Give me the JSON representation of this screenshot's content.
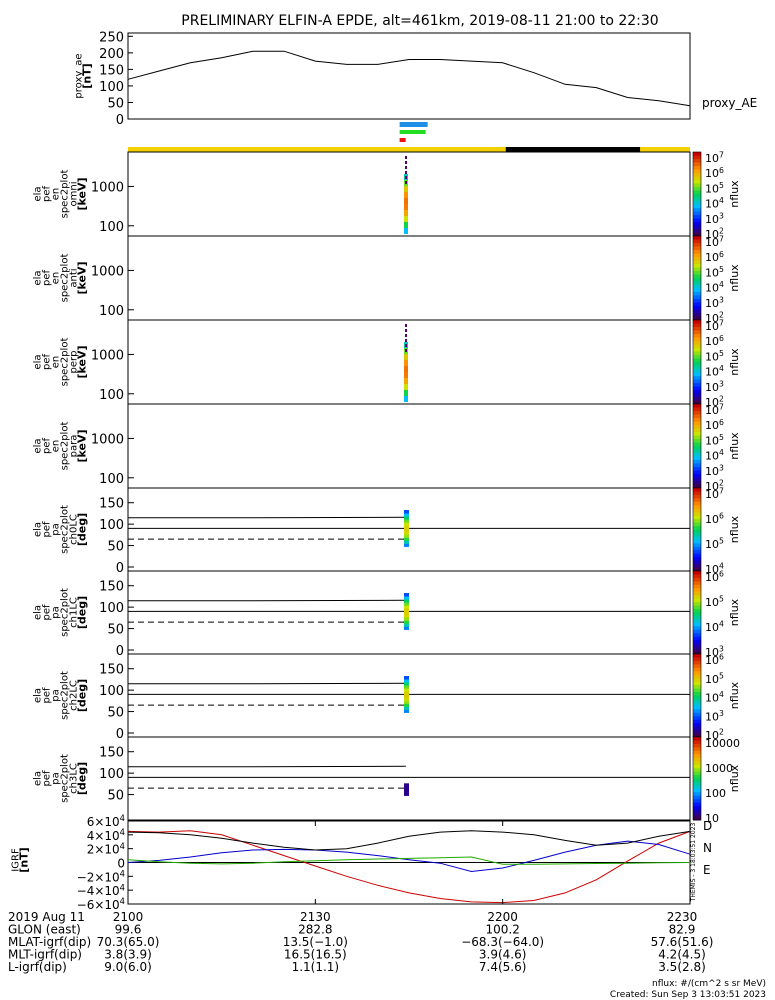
{
  "title": "PRELIMINARY ELFIN-A EPDE, alt=461km, 2019-08-11 21:00 to 22:30",
  "colors": {
    "bar_yellow": "#f5d000",
    "bar_black": "#000000",
    "ind_blue": "#1e8fe6",
    "ind_green": "#22dd22",
    "ind_red": "#ee1111",
    "igrf_x": "#cc0000",
    "igrf_y": "#0000cc",
    "igrf_z": "#22aa00",
    "igrf_total": "#000000"
  },
  "proxy_ae": {
    "ylabel": [
      "proxy_ae",
      "[nT]"
    ],
    "yticks": [
      "250",
      "200",
      "150",
      "100",
      "50",
      "0"
    ],
    "legend": "proxy_AE"
  },
  "spec_panels": [
    {
      "label": [
        "ela",
        "pef",
        "en",
        "spec2plot",
        "omni",
        "[keV]"
      ],
      "yticks": [
        "1000",
        "100"
      ],
      "cbar": [
        "10^7",
        "10^6",
        "10^5",
        "10^4",
        "10^3",
        "10^2"
      ],
      "cbar_label": "nflux"
    },
    {
      "label": [
        "ela",
        "pef",
        "en",
        "spec2plot",
        "anti",
        "[keV]"
      ],
      "yticks": [
        "1000",
        "100"
      ],
      "cbar": [
        "10^7",
        "10^6",
        "10^5",
        "10^4",
        "10^3",
        "10^2"
      ],
      "cbar_label": "nflux"
    },
    {
      "label": [
        "ela",
        "pef",
        "en",
        "spec2plot",
        "perp",
        "[keV]"
      ],
      "yticks": [
        "1000",
        "100"
      ],
      "cbar": [
        "10^7",
        "10^6",
        "10^5",
        "10^4",
        "10^3",
        "10^2"
      ],
      "cbar_label": "nflux"
    },
    {
      "label": [
        "ela",
        "pef",
        "en",
        "spec2plot",
        "para",
        "[keV]"
      ],
      "yticks": [
        "1000",
        "100"
      ],
      "cbar": [
        "10^7",
        "10^6",
        "10^5",
        "10^4",
        "10^3",
        "10^2"
      ],
      "cbar_label": "nflux"
    }
  ],
  "pa_panels": [
    {
      "label": [
        "ela",
        "pef",
        "pa",
        "spec2plot",
        "ch0LC",
        "[deg]"
      ],
      "yticks": [
        "150",
        "100",
        "50",
        "0"
      ],
      "cbar": [
        "10^7",
        "10^6",
        "10^5",
        "10^4"
      ],
      "cbar_label": "nflux"
    },
    {
      "label": [
        "ela",
        "pef",
        "pa",
        "spec2plot",
        "ch1LC",
        "[deg]"
      ],
      "yticks": [
        "150",
        "100",
        "50",
        "0"
      ],
      "cbar": [
        "10^6",
        "10^5",
        "10^4",
        "10^3"
      ],
      "cbar_label": "nflux"
    },
    {
      "label": [
        "ela",
        "pef",
        "pa",
        "spec2plot",
        "ch2LC",
        "[deg]"
      ],
      "yticks": [
        "150",
        "100",
        "50",
        "0"
      ],
      "cbar": [
        "10^6",
        "10^5",
        "10^4",
        "10^3",
        "10^2"
      ],
      "cbar_label": "nflux"
    },
    {
      "label": [
        "ela",
        "pef",
        "pa",
        "spec2plot",
        "ch3LC",
        "[deg]"
      ],
      "yticks": [
        "150",
        "100",
        "50"
      ],
      "cbar": [
        "10000",
        "1000",
        "100",
        "10"
      ],
      "cbar_label": "nflux"
    }
  ],
  "igrf": {
    "ylabel": [
      "IGRF",
      "[nT]"
    ],
    "yticks": [
      "6×10^4",
      "4×10^4",
      "2×10^4",
      "0",
      "−2×10^4",
      "−4×10^4",
      "−6×10^4"
    ],
    "components": [
      "D",
      "N",
      "E"
    ],
    "side_text": "THEMIS - 3 18:03:51 2023"
  },
  "footer": {
    "rows": [
      {
        "label": "2019 Aug 11",
        "values": [
          "2100",
          "2130",
          "2200",
          "2230"
        ]
      },
      {
        "label": "GLON (east)",
        "values": [
          "99.6",
          "282.8",
          "100.2",
          "82.9"
        ]
      },
      {
        "label": "MLAT-igrf(dip)",
        "values": [
          "70.3(65.0)",
          "13.5(−1.0)",
          "−68.3(−64.0)",
          "57.6(51.6)"
        ]
      },
      {
        "label": "MLT-igrf(dip)",
        "values": [
          "3.8(3.9)",
          "16.5(16.5)",
          "3.9(4.6)",
          "4.2(4.5)"
        ]
      },
      {
        "label": "L-igrf(dip)",
        "values": [
          "9.0(6.0)",
          "1.1(1.1)",
          "7.4(5.6)",
          "3.5(2.8)"
        ]
      }
    ],
    "units": "nflux: #/(cm^2 s sr MeV)",
    "created": "Created: Sun Sep  3 13:03:51 2023"
  },
  "chart_data": {
    "type": "line",
    "title": "PRELIMINARY ELFIN-A EPDE, alt=461km, 2019-08-11 21:00 to 22:30",
    "x_range": [
      "21:00",
      "22:30"
    ],
    "proxy_ae": {
      "ylim": [
        0,
        260
      ],
      "x_min": [
        0,
        5,
        10,
        15,
        20,
        25,
        30,
        35,
        40,
        45,
        50,
        55,
        60,
        65,
        70,
        75,
        80,
        85,
        90
      ],
      "values": [
        120,
        145,
        170,
        185,
        205,
        205,
        175,
        165,
        165,
        180,
        180,
        175,
        170,
        140,
        105,
        95,
        65,
        55,
        40
      ]
    },
    "igrf": {
      "ylim": [
        -60000,
        60000
      ],
      "x_min": [
        0,
        5,
        10,
        15,
        20,
        25,
        30,
        35,
        40,
        45,
        50,
        55,
        60,
        65,
        70,
        75,
        80,
        85,
        90
      ],
      "series": [
        {
          "name": "D",
          "values": [
            45000,
            44000,
            46000,
            40000,
            25000,
            10000,
            -5000,
            -20000,
            -33000,
            -44000,
            -52000,
            -57000,
            -58000,
            -55000,
            -44000,
            -25000,
            2000,
            28000,
            45000
          ]
        },
        {
          "name": "N",
          "values": [
            0,
            3000,
            8000,
            14000,
            18000,
            19000,
            18000,
            15000,
            10000,
            4000,
            -1000,
            -13000,
            -8000,
            3000,
            15000,
            25000,
            31000,
            26000,
            12000
          ]
        },
        {
          "name": "E",
          "values": [
            4000,
            1000,
            -1000,
            -2000,
            -1000,
            1000,
            2500,
            4000,
            5000,
            6000,
            7000,
            8000,
            -2500,
            -2500,
            -2000,
            -1500,
            -1000,
            -500,
            0
          ]
        },
        {
          "name": "total",
          "values": [
            44000,
            43000,
            40000,
            35000,
            28000,
            22000,
            18000,
            20000,
            28000,
            38000,
            44000,
            46000,
            44000,
            40000,
            32000,
            25000,
            28000,
            38000,
            45000
          ]
        }
      ]
    },
    "colorbar_scale": "rainbow (purple low → red high)"
  }
}
